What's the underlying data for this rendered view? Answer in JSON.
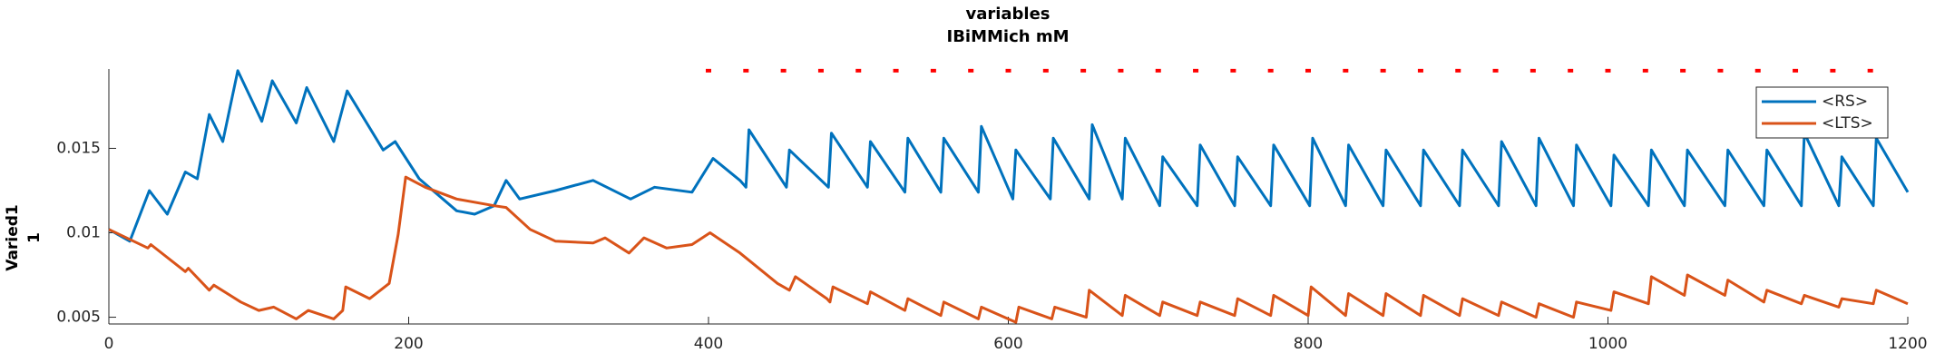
{
  "chart_data": {
    "type": "line",
    "title": [
      "variables",
      "IBiMMich mM"
    ],
    "y_label": [
      "Varied1",
      "1"
    ],
    "xlim": [
      0,
      1200
    ],
    "xticks": [
      0,
      200,
      400,
      600,
      800,
      1000,
      1200
    ],
    "ylim": [
      0.0046,
      0.0197
    ],
    "yticks": [
      0.005,
      0.01,
      0.015
    ],
    "grid": false,
    "legend": "upper right",
    "series": [
      {
        "name": "<RS>",
        "color": "#0072bd",
        "x": [
          0,
          14,
          27,
          39,
          51,
          59,
          67,
          76,
          86,
          102,
          109,
          125,
          132,
          150,
          159,
          183,
          191,
          207,
          232,
          244,
          257,
          265,
          274,
          298,
          323,
          348,
          364,
          389,
          403,
          421,
          425,
          427,
          452,
          454,
          480,
          482,
          506,
          508,
          531,
          533,
          555,
          557,
          580,
          582,
          603,
          605,
          628,
          630,
          654,
          656,
          676,
          678,
          701,
          703,
          726,
          728,
          751,
          753,
          775,
          777,
          801,
          803,
          825,
          827,
          850,
          852,
          875,
          877,
          901,
          903,
          927,
          929,
          952,
          954,
          977,
          979,
          1002,
          1004,
          1027,
          1029,
          1051,
          1053,
          1078,
          1080,
          1104,
          1106,
          1129,
          1131,
          1154,
          1156,
          1177,
          1179,
          1200
        ],
        "values": [
          0.0102,
          0.0095,
          0.0125,
          0.0111,
          0.0136,
          0.0132,
          0.017,
          0.0154,
          0.0196,
          0.0166,
          0.019,
          0.0165,
          0.0186,
          0.0154,
          0.0184,
          0.0149,
          0.0154,
          0.0132,
          0.0113,
          0.0111,
          0.0116,
          0.0131,
          0.012,
          0.0125,
          0.0131,
          0.012,
          0.0127,
          0.0124,
          0.0144,
          0.0131,
          0.0127,
          0.0161,
          0.0127,
          0.0149,
          0.0127,
          0.0159,
          0.0127,
          0.0154,
          0.0124,
          0.0156,
          0.0124,
          0.0156,
          0.0124,
          0.0163,
          0.012,
          0.0149,
          0.012,
          0.0156,
          0.012,
          0.0164,
          0.012,
          0.0156,
          0.0116,
          0.0145,
          0.0116,
          0.0152,
          0.0116,
          0.0145,
          0.0116,
          0.0152,
          0.0116,
          0.0156,
          0.0116,
          0.0152,
          0.0116,
          0.0149,
          0.0116,
          0.0149,
          0.0116,
          0.0149,
          0.0116,
          0.0154,
          0.0116,
          0.0156,
          0.0116,
          0.0152,
          0.0116,
          0.0146,
          0.0116,
          0.0149,
          0.0116,
          0.0149,
          0.0116,
          0.0149,
          0.0116,
          0.0149,
          0.0116,
          0.0159,
          0.0116,
          0.0145,
          0.0116,
          0.0156,
          0.0124
        ]
      },
      {
        "name": "<LTS>",
        "color": "#d95319",
        "x": [
          0,
          26,
          28,
          51,
          53,
          67,
          70,
          88,
          100,
          110,
          125,
          133,
          150,
          156,
          158,
          174,
          187,
          193,
          198,
          211,
          232,
          257,
          265,
          281,
          298,
          323,
          331,
          347,
          357,
          372,
          389,
          401,
          421,
          446,
          454,
          458,
          479,
          481,
          483,
          506,
          508,
          531,
          533,
          555,
          557,
          580,
          582,
          605,
          607,
          629,
          631,
          652,
          654,
          676,
          678,
          701,
          703,
          726,
          728,
          751,
          753,
          775,
          777,
          800,
          802,
          825,
          827,
          850,
          852,
          875,
          877,
          901,
          903,
          927,
          929,
          952,
          954,
          977,
          979,
          1002,
          1004,
          1027,
          1029,
          1051,
          1053,
          1078,
          1080,
          1104,
          1106,
          1129,
          1131,
          1154,
          1156,
          1177,
          1179,
          1200
        ],
        "values": [
          0.0102,
          0.0091,
          0.0093,
          0.0077,
          0.0079,
          0.0066,
          0.0069,
          0.0059,
          0.0054,
          0.0056,
          0.0049,
          0.0054,
          0.0049,
          0.0054,
          0.0068,
          0.0061,
          0.007,
          0.0099,
          0.0133,
          0.0127,
          0.012,
          0.0116,
          0.0115,
          0.0102,
          0.0095,
          0.0094,
          0.0097,
          0.0088,
          0.0097,
          0.0091,
          0.0093,
          0.01,
          0.0088,
          0.007,
          0.0066,
          0.0074,
          0.0061,
          0.0059,
          0.0068,
          0.0058,
          0.0065,
          0.0054,
          0.0061,
          0.0051,
          0.0059,
          0.0049,
          0.0056,
          0.0047,
          0.0056,
          0.0049,
          0.0056,
          0.005,
          0.0066,
          0.0051,
          0.0063,
          0.0051,
          0.0059,
          0.0051,
          0.0059,
          0.0051,
          0.0061,
          0.0051,
          0.0063,
          0.0051,
          0.0068,
          0.0051,
          0.0064,
          0.0051,
          0.0064,
          0.0051,
          0.0063,
          0.0051,
          0.0061,
          0.0051,
          0.0059,
          0.005,
          0.0058,
          0.005,
          0.0059,
          0.0054,
          0.0065,
          0.0058,
          0.0074,
          0.0063,
          0.0075,
          0.0063,
          0.0072,
          0.0059,
          0.0066,
          0.0058,
          0.0063,
          0.0056,
          0.0061,
          0.0058,
          0.0066,
          0.0058
        ]
      }
    ],
    "events": {
      "color": "#ff0000",
      "y": 0.0196,
      "x": [
        400,
        425,
        450,
        475,
        500,
        525,
        550,
        575,
        600,
        625,
        650,
        675,
        700,
        725,
        750,
        775,
        800,
        825,
        850,
        875,
        900,
        925,
        950,
        975,
        1000,
        1025,
        1050,
        1075,
        1100,
        1125,
        1150,
        1175
      ]
    }
  }
}
